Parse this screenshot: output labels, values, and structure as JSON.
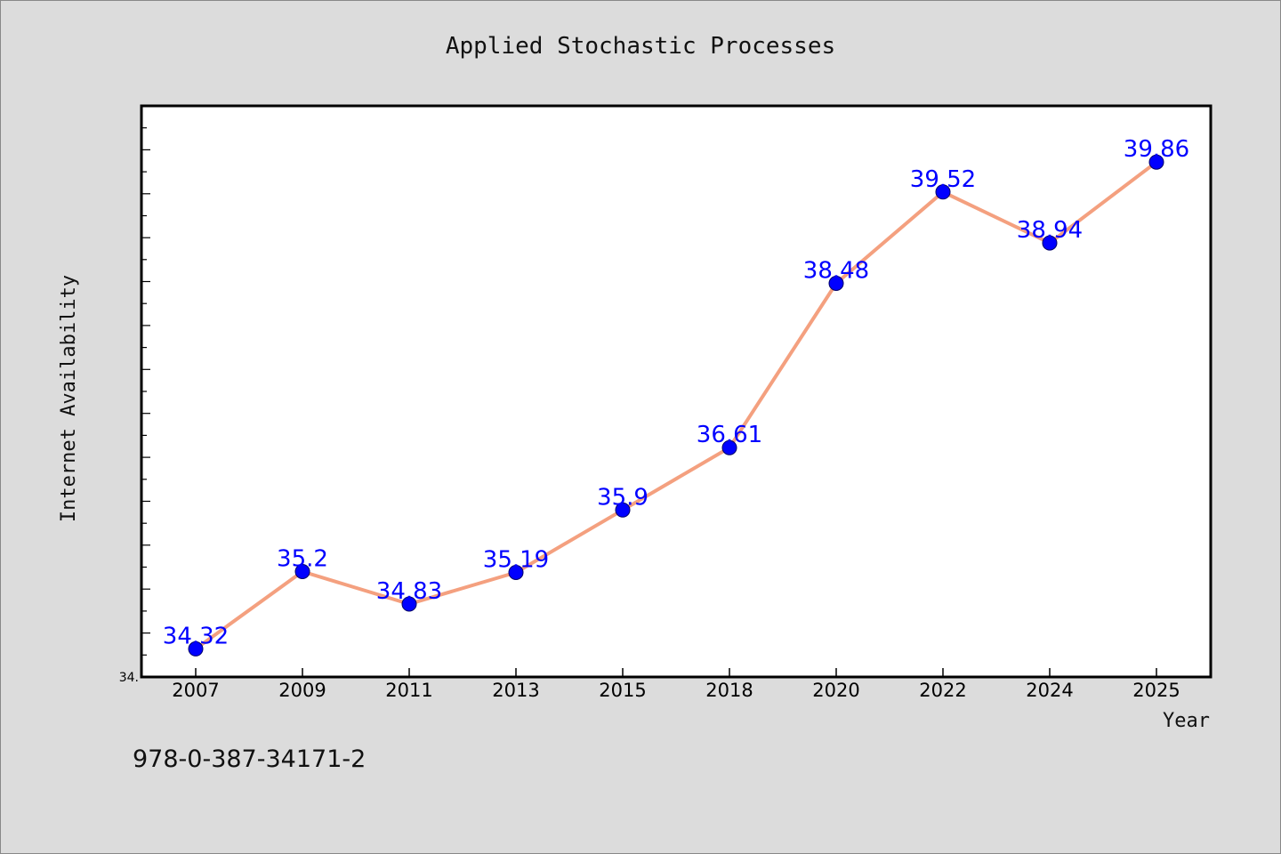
{
  "chart_data": {
    "type": "line",
    "title": "Applied Stochastic Processes",
    "xlabel": "Year",
    "ylabel": "Internet Availability",
    "categories": [
      "2007",
      "2009",
      "2011",
      "2013",
      "2015",
      "2018",
      "2020",
      "2022",
      "2024",
      "2025"
    ],
    "series": [
      {
        "values": [
          34.32,
          35.2,
          34.83,
          35.19,
          35.9,
          36.61,
          38.48,
          39.52,
          38.94,
          39.86
        ]
      }
    ],
    "ylim": [
      34.0,
      40.5
    ],
    "yticks": [
      "34."
    ],
    "grid": false,
    "legend": "none",
    "colors": {
      "line": "#f4a07f",
      "marker": "#0000ff",
      "data_label": "#0000ff",
      "plot_background": "#ffffff",
      "figure_background": "#dcdcdc"
    }
  },
  "footer": {
    "isbn": "978-0-387-34171-2"
  }
}
